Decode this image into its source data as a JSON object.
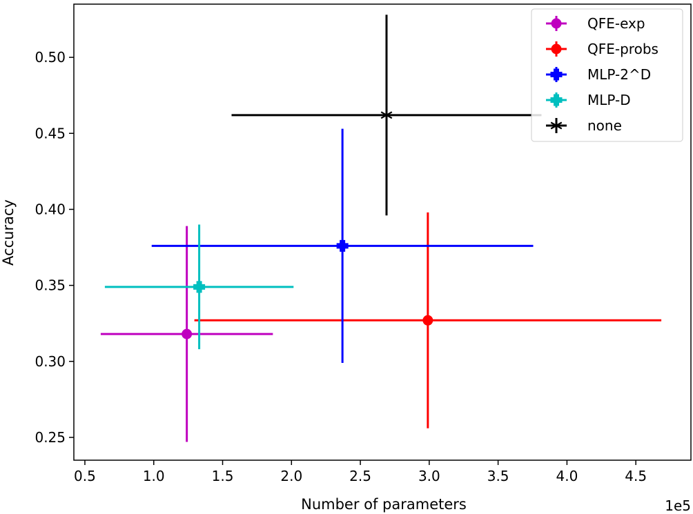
{
  "chart_data": {
    "type": "scatter",
    "title": "",
    "xlabel": "Number of parameters",
    "ylabel": "Accuracy",
    "x_offset_label": "1e5",
    "xlim": [
      0.42,
      4.9
    ],
    "ylim": [
      0.235,
      0.535
    ],
    "x_ticks": [
      0.5,
      1.0,
      1.5,
      2.0,
      2.5,
      3.0,
      3.5,
      4.0,
      4.5
    ],
    "x_tick_labels": [
      "0.5",
      "1.0",
      "1.5",
      "2.0",
      "2.5",
      "3.0",
      "3.5",
      "4.0",
      "4.5"
    ],
    "y_ticks": [
      0.25,
      0.3,
      0.35,
      0.4,
      0.45,
      0.5
    ],
    "y_tick_labels": [
      "0.25",
      "0.30",
      "0.35",
      "0.40",
      "0.45",
      "0.50"
    ],
    "grid": false,
    "legend_position": "top-right",
    "series": [
      {
        "name": "QFE-exp",
        "color": "#bf00bf",
        "marker": "circle",
        "x": 1.24,
        "y": 0.318,
        "xerr": 0.625,
        "yerr": 0.071
      },
      {
        "name": "QFE-probs",
        "color": "#ff0000",
        "marker": "circle",
        "x": 2.99,
        "y": 0.327,
        "xerr": 1.695,
        "yerr": 0.071
      },
      {
        "name": "MLP-2^D",
        "color": "#0000ff",
        "marker": "plus-filled",
        "x": 2.37,
        "y": 0.376,
        "xerr": 1.385,
        "yerr": 0.077
      },
      {
        "name": "MLP-D",
        "color": "#00bfbf",
        "marker": "plus-filled",
        "x": 1.33,
        "y": 0.349,
        "xerr": 0.685,
        "yerr": 0.041
      },
      {
        "name": "none",
        "color": "#000000",
        "marker": "asterisk",
        "x": 2.69,
        "y": 0.462,
        "xerr": 1.125,
        "yerr": 0.066
      }
    ]
  }
}
